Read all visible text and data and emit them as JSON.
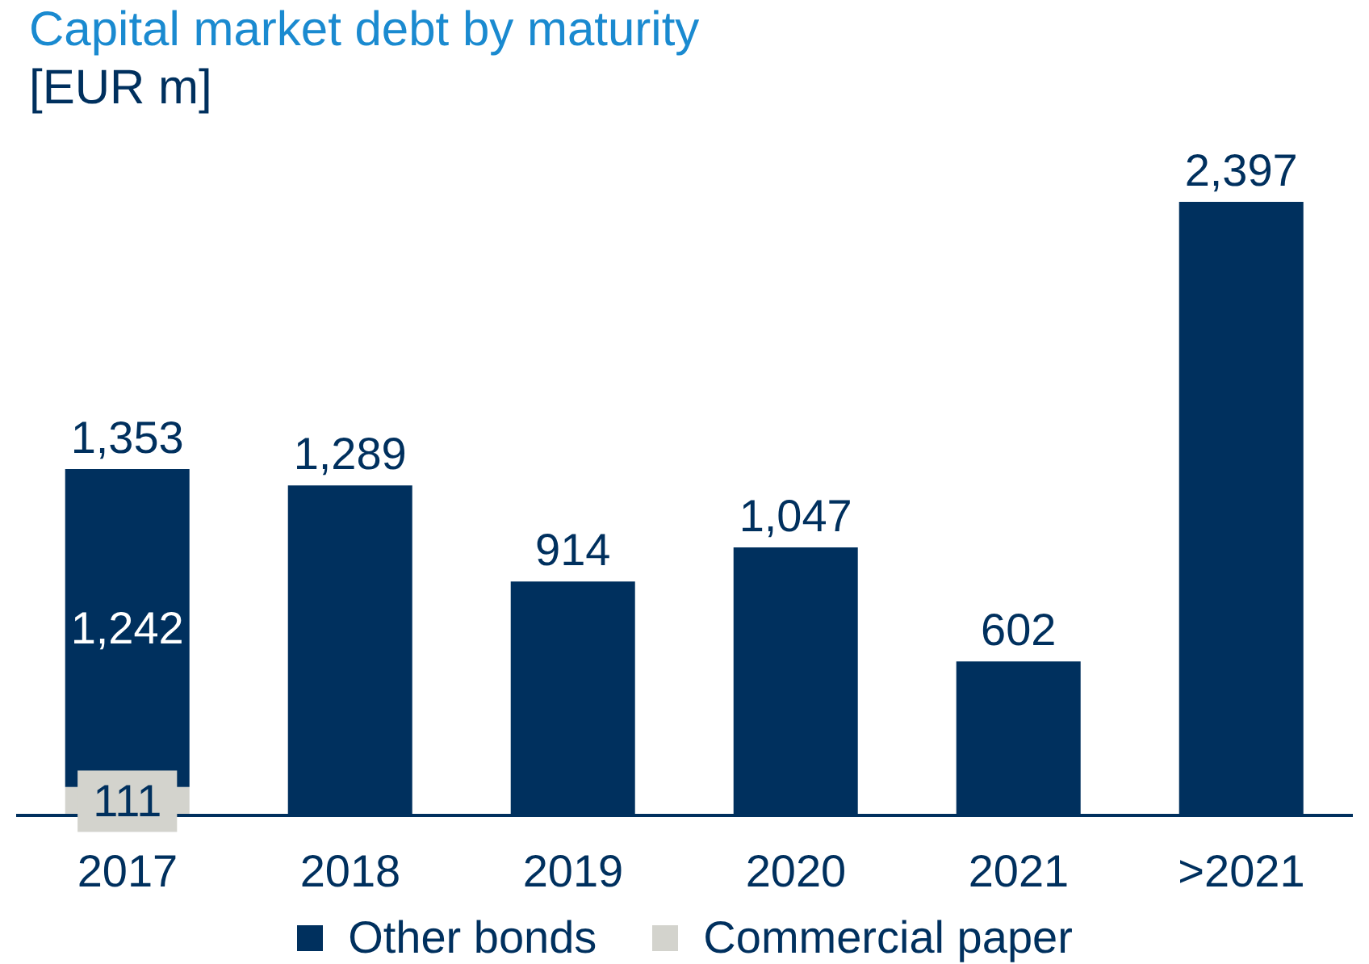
{
  "chart_data": {
    "type": "bar",
    "title": "Capital market debt by maturity",
    "subtitle": "[EUR m]",
    "categories": [
      "2017",
      "2018",
      "2019",
      "2020",
      "2021",
      ">2021"
    ],
    "stacked": true,
    "series": [
      {
        "name": "Commercial paper",
        "color": "#d3d3cd",
        "values": [
          111,
          null,
          null,
          null,
          null,
          null
        ],
        "value_labels": [
          "111",
          null,
          null,
          null,
          null,
          null
        ]
      },
      {
        "name": "Other bonds",
        "color": "#00305e",
        "values": [
          1242,
          1289,
          914,
          1047,
          602,
          2397
        ],
        "value_labels": [
          "1,242",
          "1,289",
          "914",
          "1,047",
          "602",
          "2,397"
        ]
      }
    ],
    "totals": [
      "1,353",
      null,
      null,
      null,
      null,
      null
    ],
    "legend": "bottom",
    "grid": false
  }
}
